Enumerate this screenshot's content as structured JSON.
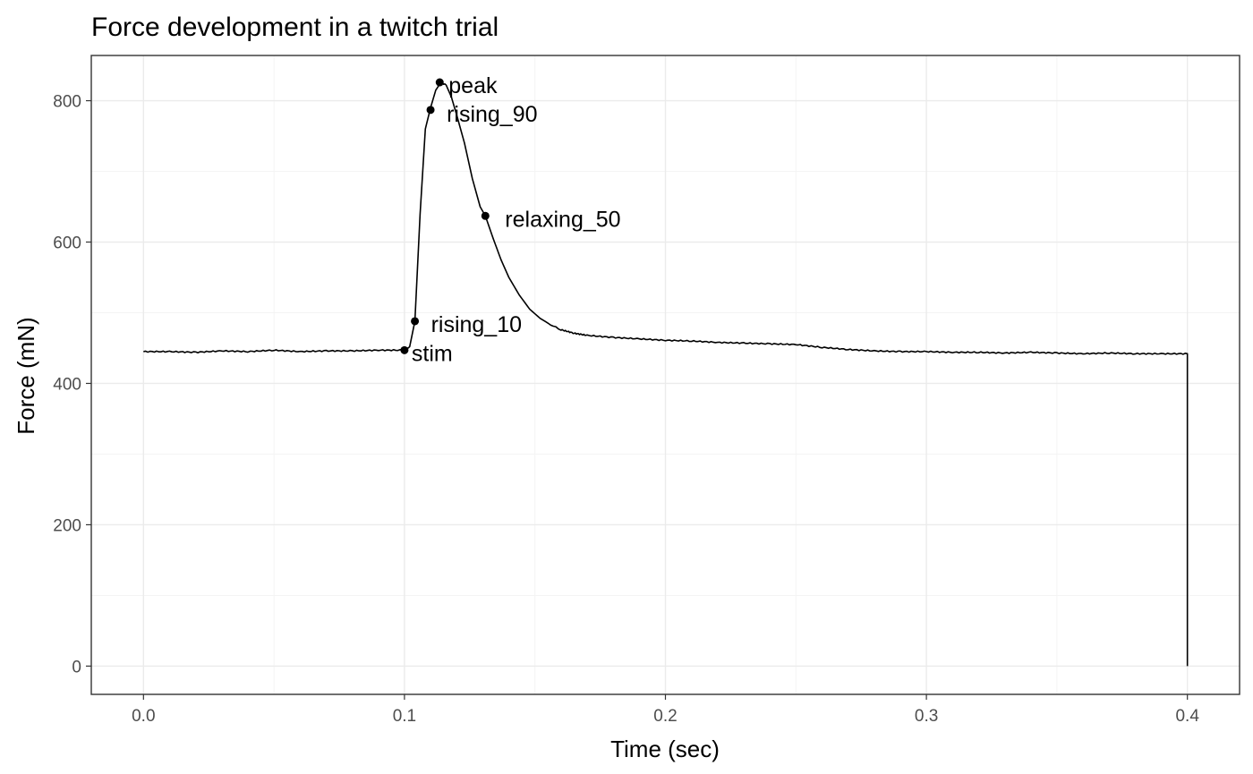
{
  "chart_data": {
    "type": "line",
    "title": "Force development in a twitch trial",
    "xlabel": "Time (sec)",
    "ylabel": "Force (mN)",
    "xlim": [
      -0.02,
      0.42
    ],
    "ylim": [
      -40,
      864
    ],
    "x_ticks": [
      0.0,
      0.1,
      0.2,
      0.3,
      0.4
    ],
    "x_tick_labels": [
      "0.0",
      "0.1",
      "0.2",
      "0.3",
      "0.4"
    ],
    "x_minor_ticks": [
      0.05,
      0.15,
      0.25,
      0.35
    ],
    "y_ticks": [
      0,
      200,
      400,
      600,
      800
    ],
    "y_tick_labels": [
      "0",
      "200",
      "400",
      "600",
      "800"
    ],
    "y_minor_ticks": [
      100,
      300,
      500,
      700
    ],
    "grid": true,
    "line_color": "#000000",
    "series": [
      {
        "x": [
          0.0,
          0.01,
          0.02,
          0.03,
          0.04,
          0.05,
          0.06,
          0.07,
          0.08,
          0.09,
          0.1,
          0.102,
          0.104,
          0.106,
          0.108,
          0.11,
          0.112,
          0.114,
          0.116,
          0.118,
          0.12,
          0.123,
          0.126,
          0.129,
          0.131,
          0.134,
          0.137,
          0.14,
          0.144,
          0.148,
          0.152,
          0.156,
          0.16,
          0.165,
          0.17,
          0.18,
          0.19,
          0.2,
          0.21,
          0.22,
          0.23,
          0.24,
          0.25,
          0.26,
          0.27,
          0.28,
          0.29,
          0.3,
          0.31,
          0.32,
          0.33,
          0.34,
          0.35,
          0.36,
          0.37,
          0.38,
          0.39,
          0.4,
          0.4
        ],
        "y": [
          445,
          445,
          444,
          446,
          445,
          447,
          445,
          446,
          446,
          447,
          447,
          452,
          488,
          640,
          760,
          790,
          815,
          826,
          822,
          805,
          780,
          740,
          690,
          650,
          637,
          605,
          575,
          550,
          525,
          505,
          492,
          483,
          476,
          471,
          468,
          465,
          463,
          461,
          460,
          458,
          457,
          456,
          455,
          451,
          448,
          446,
          445,
          445,
          444,
          444,
          443,
          444,
          443,
          442,
          443,
          442,
          442,
          442,
          0
        ]
      }
    ],
    "points": [
      {
        "label": "stim",
        "x": 0.1,
        "y": 447
      },
      {
        "label": "rising_10",
        "x": 0.104,
        "y": 488
      },
      {
        "label": "rising_90",
        "x": 0.11,
        "y": 787
      },
      {
        "label": "peak",
        "x": 0.1135,
        "y": 826
      },
      {
        "label": "relaxing_50",
        "x": 0.131,
        "y": 637
      }
    ]
  }
}
